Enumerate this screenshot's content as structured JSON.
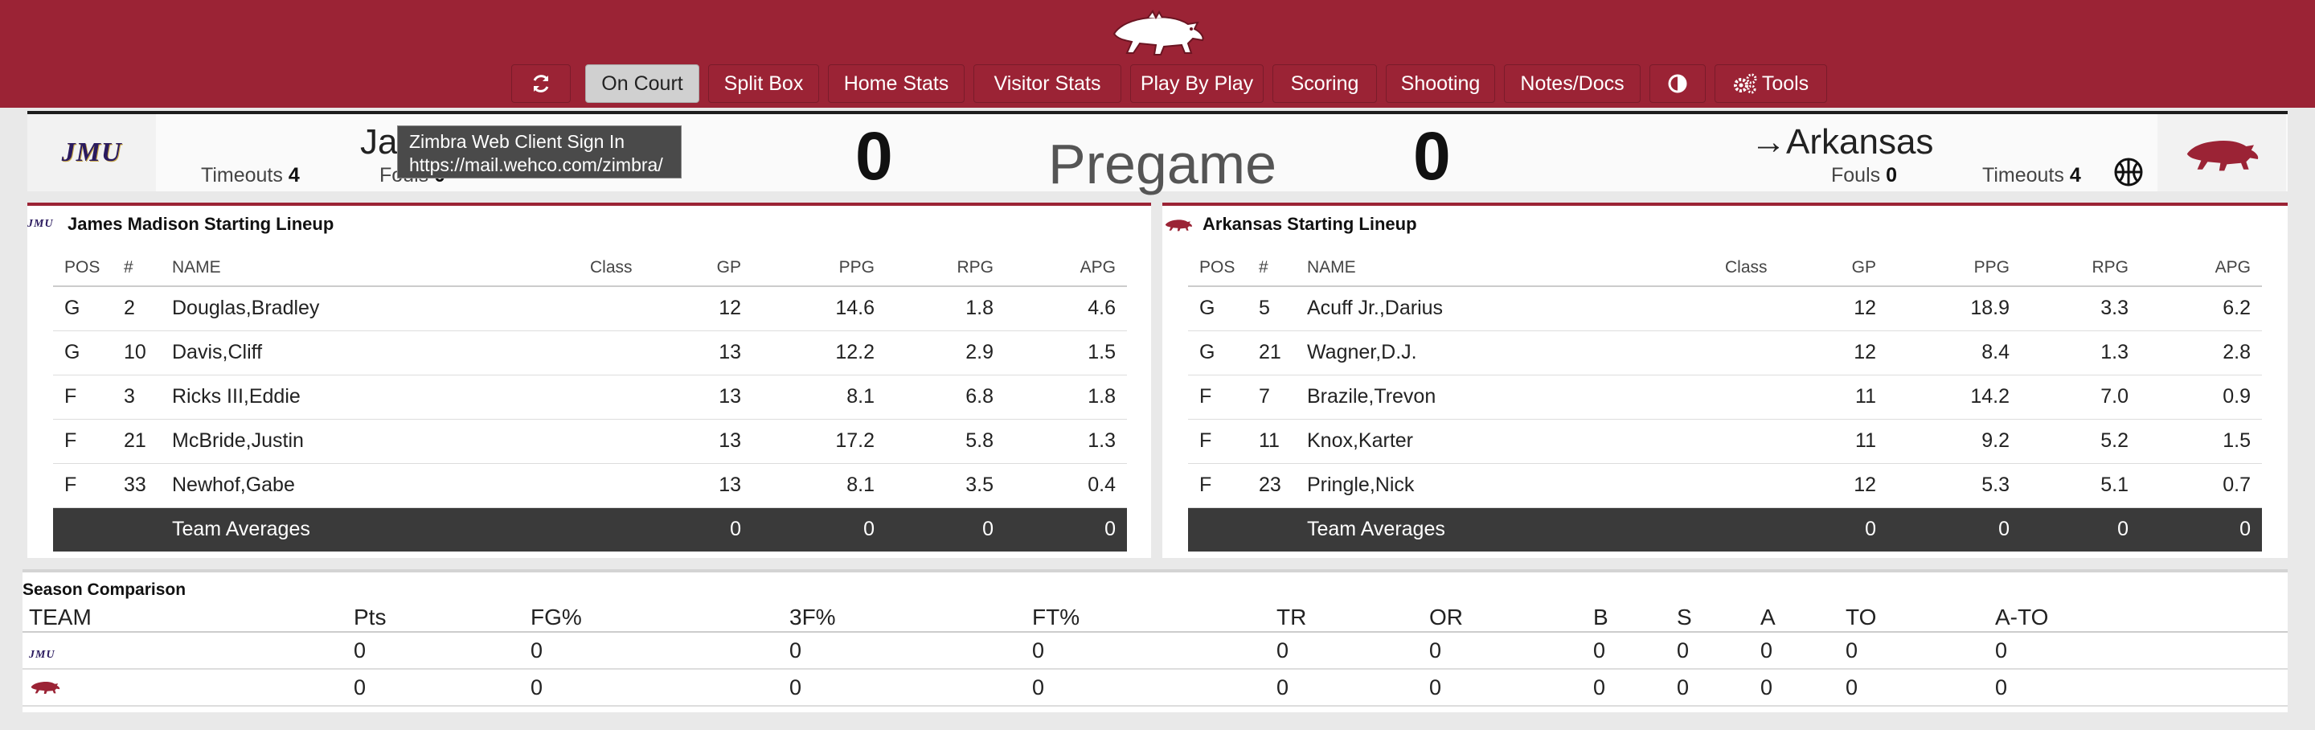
{
  "nav": {
    "buttons": [
      {
        "id": "refresh",
        "label": "",
        "icon": "refresh-icon"
      },
      {
        "id": "on-court",
        "label": "On Court",
        "active": true
      },
      {
        "id": "split-box",
        "label": "Split Box"
      },
      {
        "id": "home-stats",
        "label": "Home Stats"
      },
      {
        "id": "visitor-stats",
        "label": "Visitor Stats"
      },
      {
        "id": "play-by-play",
        "label": "Play By Play"
      },
      {
        "id": "scoring",
        "label": "Scoring"
      },
      {
        "id": "shooting",
        "label": "Shooting"
      },
      {
        "id": "notes-docs",
        "label": "Notes/Docs"
      },
      {
        "id": "theme",
        "label": "",
        "icon": "contrast-icon"
      },
      {
        "id": "tools",
        "label": "Tools",
        "icon": "gears-icon"
      }
    ]
  },
  "scoreboard": {
    "home": {
      "logo_text": "JMU",
      "name_partial": "Ja",
      "timeouts_label": "Timeouts",
      "timeouts": "4",
      "fouls_label": "Fouls",
      "fouls": "0",
      "score": "0"
    },
    "status": "Pregame",
    "visitor": {
      "name": "Arkansas",
      "possession_arrow": "→",
      "fouls_label": "Fouls",
      "fouls": "0",
      "timeouts_label": "Timeouts",
      "timeouts": "4",
      "score": "0"
    }
  },
  "tooltip": {
    "line1": "Zimbra Web Client Sign In",
    "line2": "https://mail.wehco.com/zimbra/"
  },
  "lineups": {
    "columns": [
      "POS",
      "#",
      "NAME",
      "Class",
      "GP",
      "PPG",
      "RPG",
      "APG"
    ],
    "home": {
      "title": "James Madison Starting Lineup",
      "rows": [
        [
          "G",
          "2",
          "Douglas,Bradley",
          "",
          "12",
          "14.6",
          "1.8",
          "4.6"
        ],
        [
          "G",
          "10",
          "Davis,Cliff",
          "",
          "13",
          "12.2",
          "2.9",
          "1.5"
        ],
        [
          "F",
          "3",
          "Ricks III,Eddie",
          "",
          "13",
          "8.1",
          "6.8",
          "1.8"
        ],
        [
          "F",
          "21",
          "McBride,Justin",
          "",
          "13",
          "17.2",
          "5.8",
          "1.3"
        ],
        [
          "F",
          "33",
          "Newhof,Gabe",
          "",
          "13",
          "8.1",
          "3.5",
          "0.4"
        ]
      ],
      "averages": {
        "label": "Team Averages",
        "gp": "0",
        "ppg": "0",
        "rpg": "0",
        "apg": "0"
      }
    },
    "visitor": {
      "title": "Arkansas Starting Lineup",
      "rows": [
        [
          "G",
          "5",
          "Acuff Jr.,Darius",
          "",
          "12",
          "18.9",
          "3.3",
          "6.2"
        ],
        [
          "G",
          "21",
          "Wagner,D.J.",
          "",
          "12",
          "8.4",
          "1.3",
          "2.8"
        ],
        [
          "F",
          "7",
          "Brazile,Trevon",
          "",
          "11",
          "14.2",
          "7.0",
          "0.9"
        ],
        [
          "F",
          "11",
          "Knox,Karter",
          "",
          "11",
          "9.2",
          "5.2",
          "1.5"
        ],
        [
          "F",
          "23",
          "Pringle,Nick",
          "",
          "12",
          "5.3",
          "5.1",
          "0.7"
        ]
      ],
      "averages": {
        "label": "Team Averages",
        "gp": "0",
        "ppg": "0",
        "rpg": "0",
        "apg": "0"
      }
    }
  },
  "season": {
    "title": "Season Comparison",
    "columns": [
      "TEAM",
      "Pts",
      "FG%",
      "3F%",
      "FT%",
      "TR",
      "OR",
      "B",
      "S",
      "A",
      "TO",
      "A-TO"
    ],
    "rows": [
      {
        "team_logo": "JMU",
        "values": [
          "0",
          "0",
          "0",
          "0",
          "0",
          "0",
          "0",
          "0",
          "0",
          "0",
          "0"
        ]
      },
      {
        "team_logo": "razorback",
        "values": [
          "0",
          "0",
          "0",
          "0",
          "0",
          "0",
          "0",
          "0",
          "0",
          "0",
          "0"
        ]
      }
    ]
  },
  "colors": {
    "primary": "#9b2335",
    "active_button": "#d0d0d0",
    "averages_row": "#3a3a3a"
  }
}
